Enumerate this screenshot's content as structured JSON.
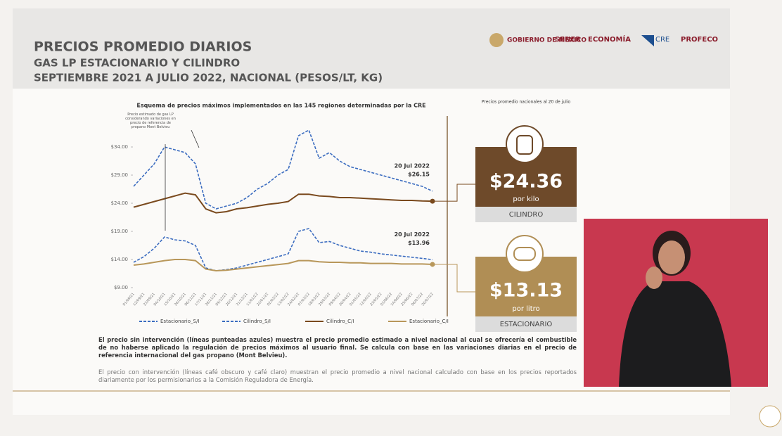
{
  "header": {
    "title": "PRECIOS PROMEDIO DIARIOS",
    "subtitle": "GAS LP ESTACIONARIO Y CILINDRO",
    "period": "SEPTIEMBRE 2021 A JULIO 2022, NACIONAL (PESOS/LT, KG)",
    "logos": [
      "GOBIERNO DE MÉXICO",
      "SENER",
      "ECONOMÍA",
      "CRE",
      "PROFECO"
    ]
  },
  "chart_data": {
    "type": "line",
    "title": "Esquema de precios máximos implementados en las 145 regiones determinadas por la CRE",
    "categories": [
      "01/09/21",
      "12/09/21",
      "23/09/21",
      "04/10/21",
      "15/10/21",
      "26/10/21",
      "06/11/21",
      "17/11/21",
      "28/11/21",
      "09/12/21",
      "20/12/21",
      "31/12/21",
      "11/01/22",
      "22/01/22",
      "02/02/22",
      "13/02/22",
      "24/02/22",
      "07/03/22",
      "18/03/22",
      "29/03/22",
      "09/04/22",
      "20/04/22",
      "01/05/22",
      "12/05/22",
      "23/05/22",
      "03/06/22",
      "14/06/22",
      "25/06/22",
      "06/07/22",
      "20/07/22"
    ],
    "series": [
      {
        "name": "Estacionario_S/I",
        "color": "#3b6cc0",
        "dashed": true,
        "values": [
          13.5,
          14.5,
          16,
          18,
          17.5,
          17.3,
          16.5,
          12.5,
          12,
          12.2,
          12.5,
          13,
          13.5,
          14,
          14.5,
          15,
          19,
          19.5,
          17,
          17.2,
          16.5,
          16,
          15.5,
          15.3,
          15,
          14.8,
          14.6,
          14.4,
          14.2,
          13.96
        ],
        "value_labels": [
          null,
          null,
          null,
          null,
          null,
          null,
          null,
          null,
          null,
          null,
          null,
          null,
          null,
          null,
          null,
          null,
          null,
          null,
          null,
          null,
          null,
          null,
          null,
          null,
          null,
          null,
          null,
          null,
          null,
          "$13.96"
        ]
      },
      {
        "name": "Cilindro_S/I",
        "color": "#3b6cc0",
        "dashed": true,
        "values": [
          27,
          29,
          31,
          34,
          33.5,
          33,
          31,
          24,
          23,
          23.5,
          24,
          25,
          26.5,
          27.5,
          29,
          30,
          36,
          37,
          32,
          33,
          31.5,
          30.5,
          30,
          29.5,
          29,
          28.5,
          28,
          27.5,
          27,
          26.15
        ],
        "value_labels": [
          null,
          null,
          null,
          null,
          null,
          null,
          null,
          null,
          null,
          null,
          null,
          null,
          null,
          null,
          null,
          null,
          null,
          null,
          null,
          null,
          null,
          null,
          null,
          null,
          null,
          null,
          null,
          null,
          null,
          "$26.15"
        ]
      },
      {
        "name": "Cilindro_C/I",
        "color": "#7a4a1e",
        "dashed": false,
        "values": [
          23.3,
          23.8,
          24.3,
          24.8,
          25.3,
          25.8,
          25.5,
          23,
          22.3,
          22.5,
          23,
          23.2,
          23.5,
          23.8,
          24,
          24.3,
          25.6,
          25.6,
          25.3,
          25.2,
          25,
          25,
          24.9,
          24.8,
          24.7,
          24.6,
          24.5,
          24.5,
          24.4,
          24.36
        ]
      },
      {
        "name": "Estacionario_C/I",
        "color": "#b8975a",
        "dashed": false,
        "values": [
          13,
          13.2,
          13.5,
          13.8,
          14,
          14,
          13.8,
          12.3,
          12,
          12.1,
          12.3,
          12.5,
          12.7,
          12.9,
          13.1,
          13.3,
          13.8,
          13.8,
          13.6,
          13.5,
          13.5,
          13.4,
          13.4,
          13.3,
          13.3,
          13.3,
          13.2,
          13.2,
          13.2,
          13.13
        ]
      }
    ],
    "ylim": [
      9,
      39
    ],
    "yticks": [
      {
        "value": 9,
        "label": "$9.00"
      },
      {
        "value": 14,
        "label": "$14.00"
      },
      {
        "value": 19,
        "label": "$19.00"
      },
      {
        "value": 24,
        "label": "$24.00"
      },
      {
        "value": 29,
        "label": "$29.00"
      },
      {
        "value": 34,
        "label": "$34.00"
      }
    ],
    "grid": false,
    "legend": "bottom",
    "annotations": [
      "Precio estimado de gas LP considerando variaciones en precio de referencia de propano Mont Belvieu",
      "20 Jul 2022",
      "20 Jul 2022"
    ]
  },
  "panel": {
    "title": "Precios promedio nacionales al 20 de julio",
    "cilindro": {
      "price": "$24.36",
      "unit": "por kilo",
      "label": "CILINDRO"
    },
    "estacionario": {
      "price": "$13.13",
      "unit": "por litro",
      "label": "ESTACIONARIO"
    }
  },
  "notes": [
    "El precio sin intervención (líneas punteadas azules) muestra el precio promedio estimado a nivel nacional al cual se ofrecería el combustible de no haberse aplicado la regulación de precios máximos al usuario final. Se calcula con base en las variaciones diarias en el precio de referencia internacional del gas propano (Mont Belvieu).",
    "El precio con intervención (líneas café obscuro y café claro) muestran el precio promedio a nivel nacional calculado con base en los precios reportados diariamente por los permisionarios a la Comisión Reguladora de Energía."
  ]
}
